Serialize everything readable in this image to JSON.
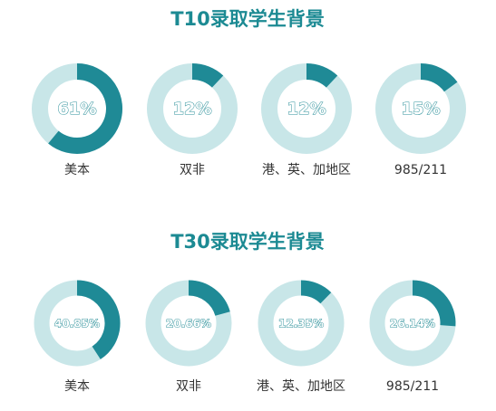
{
  "chart_data": [
    {
      "type": "donut",
      "title": "T10录取学生背景",
      "categories": [
        "美本",
        "双非",
        "港、英、加地区",
        "985/211"
      ],
      "values": [
        61,
        12,
        12,
        15
      ],
      "value_labels": [
        "61%",
        "12%",
        "12%",
        "15%"
      ],
      "color": "#1f8a96",
      "track_color": "#c8e6e8"
    },
    {
      "type": "donut",
      "title": "T30录取学生背景",
      "categories": [
        "美本",
        "双非",
        "港、英、加地区",
        "985/211"
      ],
      "values": [
        40.85,
        20.66,
        12.35,
        26.14
      ],
      "value_labels": [
        "40.85%",
        "20.66%",
        "12.35%",
        "26.14%"
      ],
      "color": "#1f8a96",
      "track_color": "#c8e6e8"
    }
  ]
}
